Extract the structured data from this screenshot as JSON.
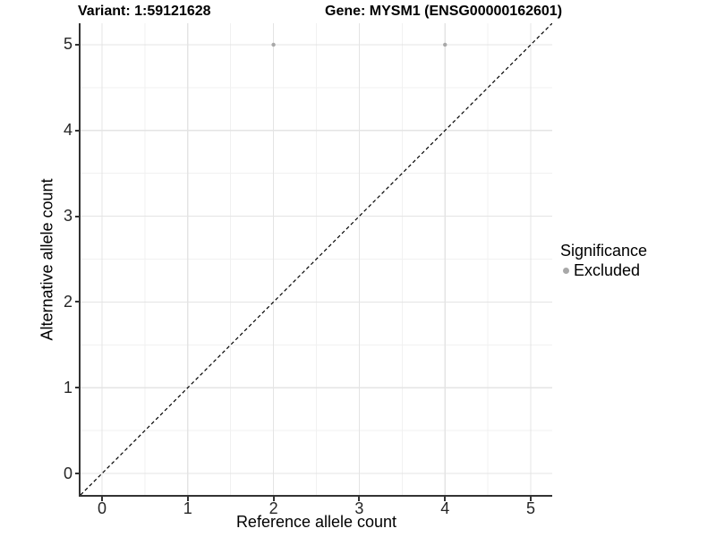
{
  "header": {
    "variant_title": "Variant: 1:59121628",
    "gene_title": "Gene: MYSM1 (ENSG00000162601)"
  },
  "chart_data": {
    "type": "scatter",
    "title": "Variant: 1:59121628 | Gene: MYSM1 (ENSG00000162601)",
    "xlabel": "Reference allele count",
    "ylabel": "Alternative allele count",
    "xlim": [
      -0.25,
      5.25
    ],
    "ylim": [
      -0.25,
      5.25
    ],
    "x_ticks": [
      0,
      1,
      2,
      3,
      4,
      5
    ],
    "y_ticks": [
      0,
      1,
      2,
      3,
      4,
      5
    ],
    "x_minor_ticks": [
      0.5,
      1.5,
      2.5,
      3.5,
      4.5
    ],
    "y_minor_ticks": [
      0.5,
      1.5,
      2.5,
      3.5,
      4.5
    ],
    "grid": "major+minor",
    "series": [
      {
        "name": "Excluded",
        "color": "#a8a8a8",
        "points": [
          {
            "x": 2,
            "y": 5
          },
          {
            "x": 4,
            "y": 5
          }
        ]
      }
    ],
    "reference_line": {
      "type": "identity y=x",
      "style": "dashed",
      "color": "#000000"
    },
    "legend": {
      "position": "right",
      "title": "Significance",
      "entries": [
        {
          "label": "Excluded",
          "color": "#a8a8a8"
        }
      ]
    }
  },
  "colors": {
    "point": "#a8a8a8",
    "grid_major": "#e4e4e4",
    "grid_minor": "#f1f1f1",
    "axis_line": "#333333",
    "dashed_line": "#000000",
    "tick_text": "#262626",
    "title_text": "#000000"
  }
}
